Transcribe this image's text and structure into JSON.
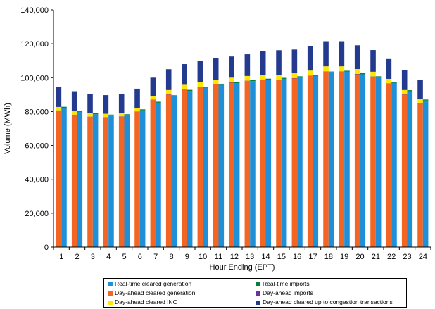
{
  "chart_data": {
    "type": "bar",
    "title": "",
    "xlabel": "Hour Ending (EPT)",
    "ylabel": "Volume (MWh)",
    "ylim": [
      0,
      140000
    ],
    "yticks": [
      0,
      20000,
      40000,
      60000,
      80000,
      100000,
      120000,
      140000
    ],
    "ytick_labels": [
      "0",
      "20,000",
      "40,000",
      "60,000",
      "80,000",
      "100,000",
      "120,000",
      "140,000"
    ],
    "categories": [
      "1",
      "2",
      "3",
      "4",
      "5",
      "6",
      "7",
      "8",
      "9",
      "10",
      "11",
      "12",
      "13",
      "14",
      "15",
      "16",
      "17",
      "18",
      "19",
      "20",
      "21",
      "22",
      "23",
      "24"
    ],
    "groups": [
      {
        "stack": "day-ahead",
        "series": [
          {
            "name": "Day-ahead cleared generation",
            "color": "#f26522",
            "values": [
              80500,
              78000,
              76800,
              76500,
              77000,
              79800,
              86800,
              90000,
              93000,
              94500,
              96000,
              97000,
              98000,
              98500,
              98500,
              99500,
              101000,
              103500,
              103500,
              102000,
              100500,
              96500,
              90000,
              84800
            ]
          },
          {
            "name": "Day-ahead imports",
            "color": "#7030a0",
            "values": [
              200,
              200,
              200,
              200,
              200,
              200,
              200,
              200,
              200,
              200,
              200,
              200,
              200,
              200,
              200,
              200,
              200,
              200,
              200,
              200,
              200,
              200,
              200,
              200
            ]
          },
          {
            "name": "Day-ahead cleared INC",
            "color": "#ffe600",
            "values": [
              2000,
              2000,
              2000,
              2000,
              2000,
              2000,
              2200,
              2500,
              2600,
              2600,
              2600,
              2800,
              2800,
              2900,
              2900,
              2900,
              3000,
              3000,
              3000,
              2900,
              2800,
              2600,
              2500,
              2300
            ]
          },
          {
            "name": "Day-ahead cleared up to congestion transactions",
            "color": "#233a8f",
            "values": [
              11800,
              11800,
              11300,
              11000,
              11300,
              11500,
              10800,
              12300,
              12200,
              12700,
              12600,
              12500,
              12800,
              13900,
              14600,
              14000,
              14300,
              14800,
              14800,
              14000,
              12800,
              11700,
              11600,
              11400
            ]
          }
        ]
      },
      {
        "stack": "real-time",
        "series": [
          {
            "name": "Real-time cleared generation",
            "color": "#1f8fd8",
            "values": [
              82200,
              79800,
              78400,
              77600,
              77800,
              80700,
              85200,
              89000,
              92200,
              94000,
              95800,
              96800,
              98000,
              98800,
              99300,
              100200,
              101000,
              103000,
              103500,
              102000,
              100200,
              97000,
              92000,
              86500
            ]
          },
          {
            "name": "Real-time imports",
            "color": "#00823b",
            "values": [
              600,
              600,
              600,
              600,
              600,
              600,
              600,
              600,
              600,
              600,
              600,
              600,
              600,
              600,
              600,
              600,
              600,
              600,
              600,
              600,
              600,
              600,
              600,
              600
            ]
          }
        ]
      }
    ],
    "legend": {
      "placement": "bottom",
      "items": [
        {
          "label": "Real-time cleared generation",
          "color": "#1f8fd8"
        },
        {
          "label": "Real-time imports",
          "color": "#00823b"
        },
        {
          "label": "Day-ahead cleared generation",
          "color": "#f26522"
        },
        {
          "label": "Day-ahead imports",
          "color": "#7030a0"
        },
        {
          "label": "Day-ahead cleared INC",
          "color": "#ffe600"
        },
        {
          "label": "Day-ahead cleared up to congestion transactions",
          "color": "#233a8f"
        }
      ]
    },
    "grid": false
  }
}
